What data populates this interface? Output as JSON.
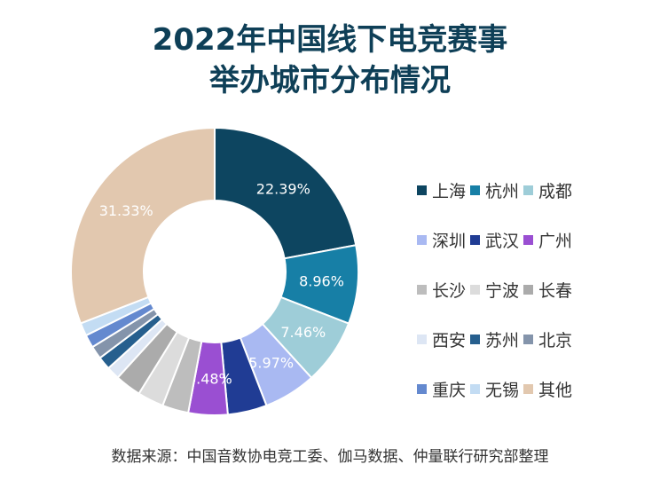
{
  "chart_data": {
    "type": "pie",
    "title_lines": [
      "2022年中国线下电竞赛事",
      "举办城市分布情况"
    ],
    "source": "数据来源：中国音数协电竞工委、伽马数据、仲量联行研究部整理",
    "legend_position": "right",
    "slices": [
      {
        "name": "上海",
        "value": 22.39,
        "color": "#0d4560",
        "label": "22.39%"
      },
      {
        "name": "杭州",
        "value": 8.96,
        "color": "#177fa6",
        "label": "8.96%"
      },
      {
        "name": "成都",
        "value": 7.46,
        "color": "#9ecdd8",
        "label": "7.46%"
      },
      {
        "name": "深圳",
        "value": 5.97,
        "color": "#a9b9f2",
        "label": "5.97%"
      },
      {
        "name": "武汉",
        "value": 4.48,
        "color": "#203c94",
        "label": ""
      },
      {
        "name": "广州",
        "value": 4.48,
        "color": "#9a4fd2",
        "label": "4.48%"
      },
      {
        "name": "长沙",
        "value": 2.99,
        "color": "#bdbdbd",
        "label": ""
      },
      {
        "name": "宁波",
        "value": 2.99,
        "color": "#dcdcdc",
        "label": ""
      },
      {
        "name": "长春",
        "value": 2.99,
        "color": "#ababab",
        "label": ""
      },
      {
        "name": "西安",
        "value": 1.49,
        "color": "#dde6f4",
        "label": ""
      },
      {
        "name": "苏州",
        "value": 1.49,
        "color": "#265f8e",
        "label": ""
      },
      {
        "name": "北京",
        "value": 1.49,
        "color": "#8494ab",
        "label": ""
      },
      {
        "name": "重庆",
        "value": 1.49,
        "color": "#6489cf",
        "label": ""
      },
      {
        "name": "无锡",
        "value": 1.49,
        "color": "#c3dcf3",
        "label": ""
      },
      {
        "name": "其他",
        "value": 31.33,
        "color": "#e2c8af",
        "label": "31.33%"
      }
    ]
  }
}
